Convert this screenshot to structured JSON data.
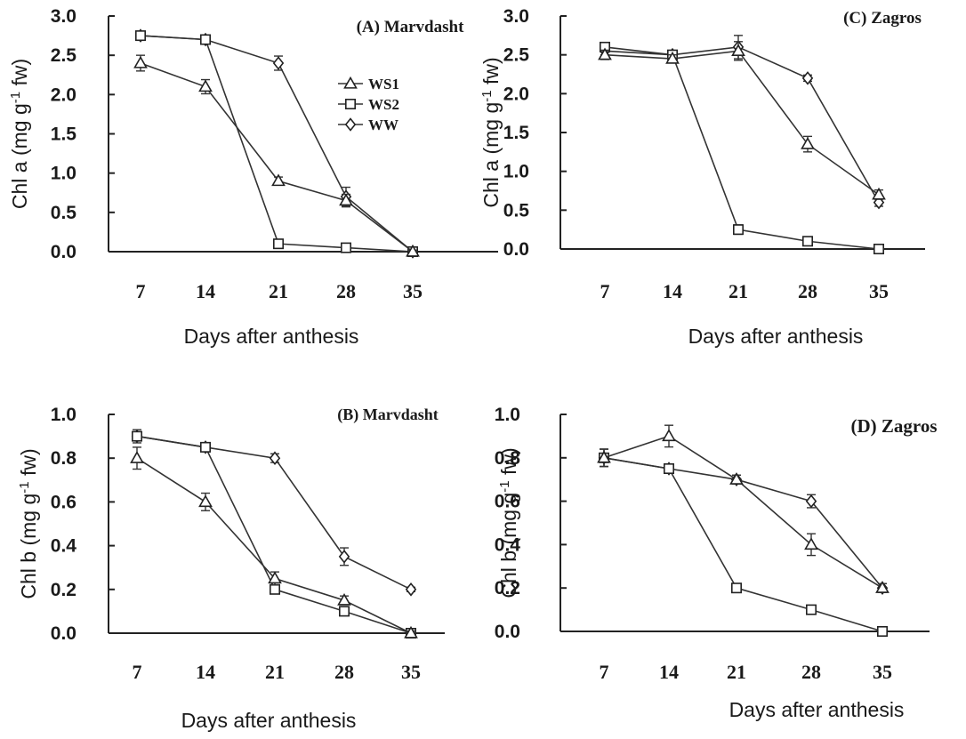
{
  "figure": {
    "legend": [
      "WS1",
      "WS2",
      "WW"
    ]
  },
  "chart_data": [
    {
      "type": "line",
      "title": "(A) Marvdasht",
      "xlabel": "Days after anthesis",
      "ylabel": "Chl a (mg g-1 fw)",
      "ylim": [
        0,
        3
      ],
      "yticks": [
        "0.0",
        "0.5",
        "1.0",
        "1.5",
        "2.0",
        "2.5",
        "3.0"
      ],
      "categories": [
        "7",
        "14",
        "21",
        "28",
        "35"
      ],
      "legend_position": "inside-center",
      "series": [
        {
          "name": "WS1",
          "marker": "triangle",
          "values": [
            2.4,
            2.1,
            0.9,
            0.65,
            0.0
          ],
          "errors": [
            0.1,
            0.09,
            0.05,
            0.08,
            0.02
          ]
        },
        {
          "name": "WS2",
          "marker": "square",
          "values": [
            2.75,
            2.7,
            0.1,
            0.05,
            0.0
          ],
          "errors": [
            0.04,
            0.03,
            0.05,
            0.02,
            0.02
          ]
        },
        {
          "name": "WW",
          "marker": "diamond",
          "values": [
            2.75,
            2.7,
            2.4,
            0.7,
            0.0
          ],
          "errors": [
            0.04,
            0.03,
            0.09,
            0.12,
            0.02
          ]
        }
      ]
    },
    {
      "type": "line",
      "title": "(C) Zagros",
      "xlabel": "Days after anthesis",
      "ylabel": "Chl a (mg g-1 fw)",
      "ylim": [
        0,
        3
      ],
      "yticks": [
        "0.0",
        "0.5",
        "1.0",
        "1.5",
        "2.0",
        "2.5",
        "3.0"
      ],
      "categories": [
        "7",
        "14",
        "21",
        "28",
        "35"
      ],
      "series": [
        {
          "name": "WS1",
          "marker": "triangle",
          "values": [
            2.5,
            2.45,
            2.55,
            1.35,
            0.7
          ],
          "errors": [
            0.06,
            0.05,
            0.12,
            0.1,
            0.06
          ]
        },
        {
          "name": "WS2",
          "marker": "square",
          "values": [
            2.6,
            2.5,
            0.25,
            0.1,
            0.0
          ],
          "errors": [
            0.05,
            0.05,
            0.06,
            0.04,
            0.02
          ]
        },
        {
          "name": "WW",
          "marker": "diamond",
          "values": [
            2.55,
            2.5,
            2.6,
            2.2,
            0.6
          ],
          "errors": [
            0.05,
            0.04,
            0.15,
            0.04,
            0.05
          ]
        }
      ]
    },
    {
      "type": "line",
      "title": "(B) Marvdasht",
      "xlabel": "Days after anthesis",
      "ylabel": "Chl b (mg g-1 fw)",
      "ylim": [
        0,
        1
      ],
      "yticks": [
        "0.0",
        "0.2",
        "0.4",
        "0.6",
        "0.8",
        "1.0"
      ],
      "categories": [
        "7",
        "14",
        "21",
        "28",
        "35"
      ],
      "series": [
        {
          "name": "WS1",
          "marker": "triangle",
          "values": [
            0.8,
            0.6,
            0.25,
            0.15,
            0.0
          ],
          "errors": [
            0.05,
            0.04,
            0.03,
            0.02,
            0.01
          ]
        },
        {
          "name": "WS2",
          "marker": "square",
          "values": [
            0.9,
            0.85,
            0.2,
            0.1,
            0.0
          ],
          "errors": [
            0.02,
            0.02,
            0.02,
            0.02,
            0.01
          ]
        },
        {
          "name": "WW",
          "marker": "diamond",
          "values": [
            0.9,
            0.85,
            0.8,
            0.35,
            0.2
          ],
          "errors": [
            0.03,
            0.02,
            0.02,
            0.04,
            0.01
          ]
        }
      ]
    },
    {
      "type": "line",
      "title": "(D) Zagros",
      "xlabel": "Days after anthesis",
      "ylabel": "Chl b (mg g-1 fw)",
      "ylim": [
        0,
        1
      ],
      "yticks": [
        "0.0",
        "0.2",
        "0.4",
        "0.6",
        "0.8",
        "1.0"
      ],
      "categories": [
        "7",
        "14",
        "21",
        "28",
        "35"
      ],
      "series": [
        {
          "name": "WS1",
          "marker": "triangle",
          "values": [
            0.8,
            0.9,
            0.7,
            0.4,
            0.2
          ],
          "errors": [
            0.04,
            0.05,
            0.02,
            0.05,
            0.02
          ]
        },
        {
          "name": "WS2",
          "marker": "square",
          "values": [
            0.8,
            0.75,
            0.2,
            0.1,
            0.0
          ],
          "errors": [
            0.04,
            0.02,
            0.01,
            0.01,
            0.01
          ]
        },
        {
          "name": "WW",
          "marker": "diamond",
          "values": [
            0.8,
            0.75,
            0.7,
            0.6,
            0.2
          ],
          "errors": [
            0.04,
            0.02,
            0.02,
            0.03,
            0.02
          ]
        }
      ]
    }
  ]
}
